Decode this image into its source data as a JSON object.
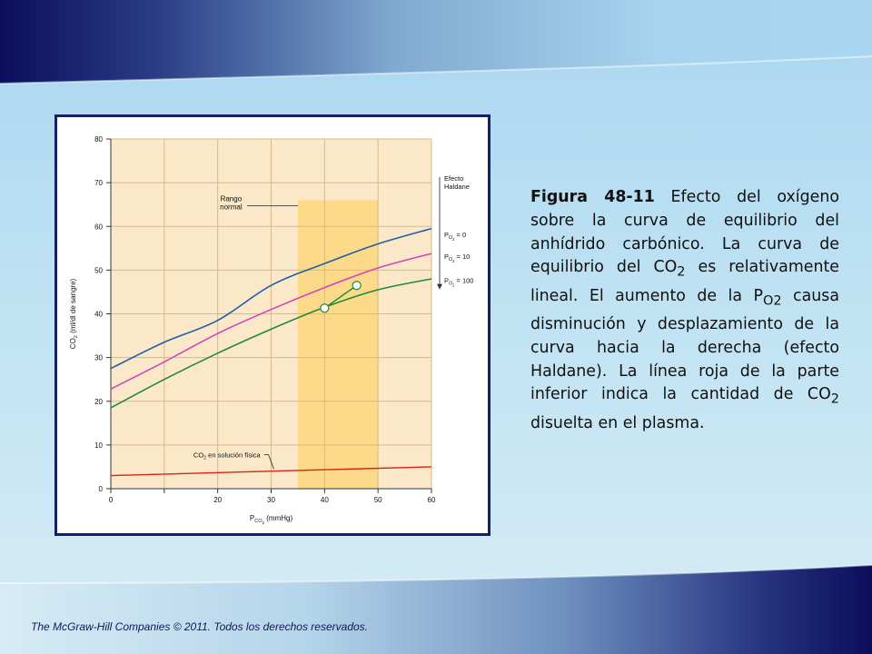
{
  "colors": {
    "band_dark": "#0c0f5e",
    "band_light": "#a9d6f0",
    "frame": "#14206a",
    "plot_bg": "#fbe8c8",
    "range_fill": "#fdd98a",
    "grid": "#d9b98a",
    "curve_blue": "#1f5fa8",
    "curve_pink": "#d045b8",
    "curve_green": "#1f8a3a",
    "line_red": "#d62418"
  },
  "caption": {
    "figure_label": "Figura 48-11",
    "t1": " Efecto del oxígeno sobre la curva de equilibrio del anhídrido carbónico. La curva de equilibrio del CO",
    "sub1": "2",
    "t2": " es relativamente lineal. El aumento de la P",
    "sub2": "O2",
    "t3": " causa disminución y desplazamiento de la curva hacia la derecha (efecto Haldane). La línea roja de la parte inferior indica la cantidad de CO",
    "sub3": "2",
    "t4": " disuelta en el plasma."
  },
  "footer": "The McGraw-Hill Companies © 2011. Todos los derechos reservados.",
  "chart_data": {
    "type": "line",
    "xlabel": {
      "main": "P",
      "sub": "CO",
      "sub2": "2",
      "rest": " (mmHg)"
    },
    "ylabel": {
      "main": "CO",
      "sub": "2",
      "rest": " (ml/dl de sangre)"
    },
    "xlim": [
      0,
      60
    ],
    "ylim": [
      0,
      80
    ],
    "xticks": [
      0,
      10,
      20,
      30,
      40,
      50,
      60
    ],
    "xtick_labels": [
      "0",
      "",
      "20",
      "30",
      "40",
      "50",
      "60"
    ],
    "yticks": [
      0,
      10,
      20,
      30,
      40,
      50,
      60,
      70,
      80
    ],
    "ytick_labels": [
      "0",
      "10",
      "20",
      "30",
      "40",
      "50",
      "60",
      "70",
      "80"
    ],
    "grid": true,
    "normal_range": {
      "x": [
        35,
        50
      ],
      "y_top": 66,
      "label_line1": "Rango",
      "label_line2": "normal"
    },
    "haldane_label": [
      "Efecto",
      "Haldane"
    ],
    "series": [
      {
        "color": "#1f5fa8",
        "label_main": "P",
        "label_sub": "O",
        "label_sub2": "2",
        "label_rest": " = 0",
        "x": [
          0,
          10,
          20,
          30,
          40,
          50,
          60
        ],
        "y": [
          27.5,
          33.5,
          38.5,
          46.5,
          51.5,
          56,
          59.5
        ]
      },
      {
        "color": "#d045b8",
        "label_main": "P",
        "label_sub": "O",
        "label_sub2": "2",
        "label_rest": " = 10",
        "x": [
          0,
          10,
          20,
          30,
          40,
          50,
          60
        ],
        "y": [
          22.8,
          29,
          35.5,
          41,
          46,
          50.5,
          53.8
        ]
      },
      {
        "color": "#1f8a3a",
        "label_main": "P",
        "label_sub": "O",
        "label_sub2": "2",
        "label_rest": " = 100",
        "x": [
          0,
          10,
          20,
          30,
          40,
          50,
          60
        ],
        "y": [
          18.5,
          25,
          31,
          36.5,
          41.5,
          45.5,
          48
        ]
      }
    ],
    "dissolved": {
      "color": "#d62418",
      "label_main": "CO",
      "label_sub": "2",
      "label_rest": " en solución física",
      "x": [
        0,
        60
      ],
      "y": [
        3,
        5
      ]
    },
    "points": [
      {
        "x": 40,
        "y": 41.3
      },
      {
        "x": 46,
        "y": 46.5
      }
    ]
  }
}
